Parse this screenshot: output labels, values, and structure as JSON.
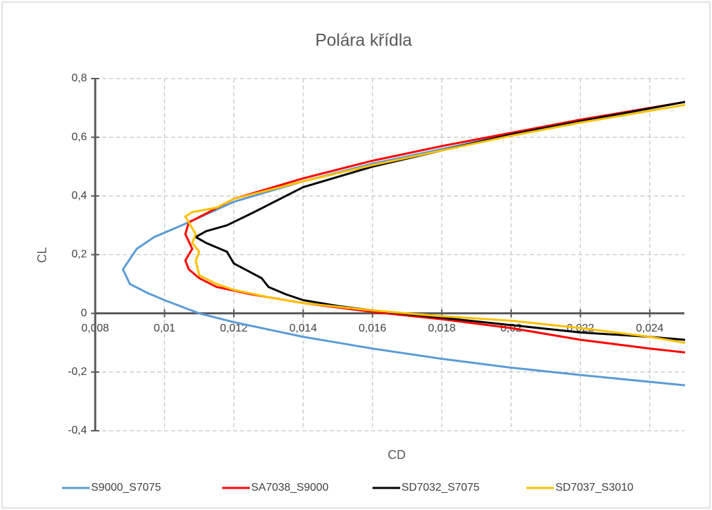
{
  "chart_data": {
    "type": "line",
    "title": "Polára křídla",
    "x_label": "CD",
    "y_label": "CL",
    "xlim": [
      0.008,
      0.025
    ],
    "ylim": [
      -0.4,
      0.8
    ],
    "xticks": [
      {
        "value": 0.008,
        "label": "0,008"
      },
      {
        "value": 0.01,
        "label": "0,01"
      },
      {
        "value": 0.012,
        "label": "0,012"
      },
      {
        "value": 0.014,
        "label": "0,014"
      },
      {
        "value": 0.016,
        "label": "0,016"
      },
      {
        "value": 0.018,
        "label": "0,018"
      },
      {
        "value": 0.02,
        "label": "0,02"
      },
      {
        "value": 0.022,
        "label": "0,022"
      },
      {
        "value": 0.024,
        "label": "0,024"
      }
    ],
    "yticks": [
      {
        "value": -0.4,
        "label": "-0,4"
      },
      {
        "value": -0.2,
        "label": "-0,2"
      },
      0,
      {
        "value": 0.2,
        "label": "0,2"
      },
      {
        "value": 0.4,
        "label": "0,4"
      },
      {
        "value": 0.6,
        "label": "0,6"
      },
      {
        "value": 0.8,
        "label": "0,8"
      }
    ],
    "grid": true,
    "legend": "bottom",
    "series": [
      {
        "name": "S9000_S7075",
        "color": "#5b9bd5",
        "x": [
          0.025,
          0.022,
          0.02,
          0.018,
          0.016,
          0.014,
          0.012,
          0.011,
          0.01,
          0.0095,
          0.009,
          0.0088,
          0.0092,
          0.0097,
          0.0105,
          0.012,
          0.014,
          0.016,
          0.018,
          0.02,
          0.022,
          0.025
        ],
        "values": [
          -0.245,
          -0.21,
          -0.185,
          -0.155,
          -0.12,
          -0.08,
          -0.03,
          0.0,
          0.045,
          0.07,
          0.1,
          0.15,
          0.22,
          0.26,
          0.3,
          0.38,
          0.45,
          0.51,
          0.56,
          0.61,
          0.655,
          0.72
        ]
      },
      {
        "name": "SA7038_S9000",
        "color": "#ff0000",
        "x": [
          0.025,
          0.024,
          0.022,
          0.02,
          0.018,
          0.016,
          0.014,
          0.0125,
          0.0115,
          0.011,
          0.0107,
          0.0106,
          0.0108,
          0.0106,
          0.0107,
          0.0112,
          0.012,
          0.014,
          0.016,
          0.018,
          0.02,
          0.022,
          0.025
        ],
        "values": [
          -0.133,
          -0.12,
          -0.09,
          -0.05,
          -0.02,
          0.005,
          0.035,
          0.065,
          0.09,
          0.12,
          0.15,
          0.18,
          0.22,
          0.27,
          0.31,
          0.34,
          0.39,
          0.46,
          0.52,
          0.57,
          0.615,
          0.66,
          0.72
        ]
      },
      {
        "name": "SD7032_S7075",
        "color": "#000000",
        "x": [
          0.025,
          0.024,
          0.022,
          0.02,
          0.018,
          0.016,
          0.015,
          0.014,
          0.0135,
          0.013,
          0.0128,
          0.012,
          0.0118,
          0.0112,
          0.0109,
          0.0112,
          0.0118,
          0.0125,
          0.013,
          0.014,
          0.016,
          0.018,
          0.02,
          0.022,
          0.025
        ],
        "values": [
          -0.09,
          -0.08,
          -0.065,
          -0.04,
          -0.015,
          0.01,
          0.025,
          0.045,
          0.065,
          0.09,
          0.12,
          0.17,
          0.21,
          0.24,
          0.26,
          0.28,
          0.3,
          0.34,
          0.37,
          0.43,
          0.5,
          0.555,
          0.61,
          0.655,
          0.72
        ]
      },
      {
        "name": "SD7037_S3010",
        "color": "#ffc000",
        "x": [
          0.025,
          0.024,
          0.022,
          0.02,
          0.018,
          0.016,
          0.014,
          0.013,
          0.012,
          0.0115,
          0.011,
          0.0109,
          0.011,
          0.0108,
          0.0109,
          0.0107,
          0.0106,
          0.0108,
          0.0115,
          0.012,
          0.014,
          0.016,
          0.018,
          0.02,
          0.022,
          0.025
        ],
        "values": [
          -0.1,
          -0.08,
          -0.05,
          -0.025,
          -0.01,
          0.01,
          0.035,
          0.055,
          0.08,
          0.1,
          0.13,
          0.18,
          0.21,
          0.24,
          0.27,
          0.31,
          0.33,
          0.345,
          0.36,
          0.39,
          0.45,
          0.505,
          0.555,
          0.605,
          0.65,
          0.71
        ]
      }
    ]
  }
}
